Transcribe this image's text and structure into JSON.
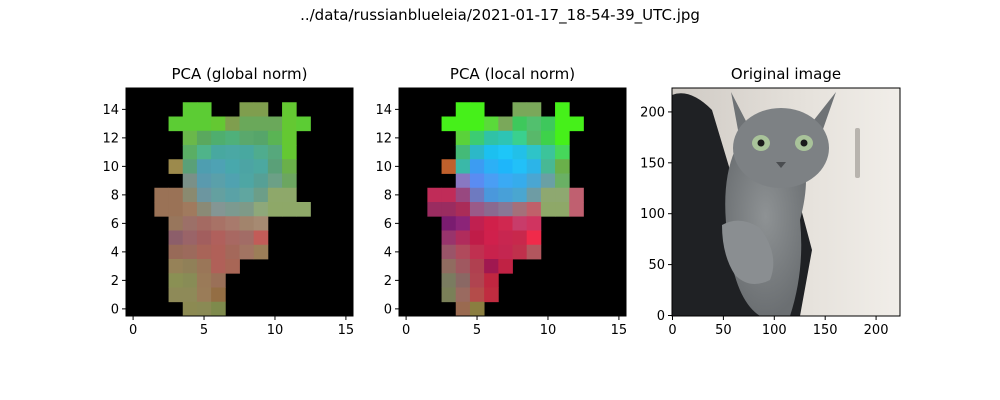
{
  "suptitle": "../data/russianblueleia/2021-01-17_18-54-39_UTC.jpg",
  "colors": {
    "background": "#000000",
    "frame": "#000000"
  },
  "chart_data": [
    {
      "type": "heatmap",
      "title": "PCA (global norm)",
      "xlim": [
        -0.5,
        15.5
      ],
      "ylim": [
        15.5,
        -0.5
      ],
      "x_ticks": [
        0,
        5,
        10,
        15
      ],
      "y_ticks": [
        0,
        2,
        4,
        6,
        8,
        10,
        12,
        14
      ],
      "grid_size": [
        16,
        16
      ],
      "background": "#000000",
      "cells": [
        [
          "#000000",
          "#000000",
          "#000000",
          "#000000",
          "#000000",
          "#000000",
          "#000000",
          "#000000",
          "#000000",
          "#000000",
          "#000000",
          "#000000",
          "#000000",
          "#000000",
          "#000000",
          "#000000"
        ],
        [
          "#000000",
          "#000000",
          "#000000",
          "#000000",
          "#5ccc34",
          "#5ccc34",
          "#000000",
          "#000000",
          "#7f9e4e",
          "#7f9e4e",
          "#000000",
          "#64c832",
          "#000000",
          "#000000",
          "#000000",
          "#000000"
        ],
        [
          "#000000",
          "#000000",
          "#000000",
          "#5ccc34",
          "#5ccc34",
          "#5ccc34",
          "#64c832",
          "#7f9e4e",
          "#6aa85a",
          "#6aa85a",
          "#6aa85a",
          "#64c832",
          "#5ccc34",
          "#000000",
          "#000000",
          "#000000"
        ],
        [
          "#000000",
          "#000000",
          "#000000",
          "#000000",
          "#6ab84a",
          "#5aa85e",
          "#4fae6e",
          "#4fb07a",
          "#5aa86c",
          "#56a56a",
          "#5ab454",
          "#64c832",
          "#000000",
          "#000000",
          "#000000",
          "#000000"
        ],
        [
          "#000000",
          "#000000",
          "#000000",
          "#000000",
          "#5aae64",
          "#4fb48a",
          "#48a8a0",
          "#4aa8a4",
          "#48a8a0",
          "#4fac8e",
          "#56a87c",
          "#64c832",
          "#000000",
          "#000000",
          "#000000",
          "#000000"
        ],
        [
          "#000000",
          "#000000",
          "#000000",
          "#9c8a4c",
          "#5aa078",
          "#4e9eb0",
          "#4ea2b4",
          "#48a8ac",
          "#4ca4a4",
          "#4ca8a0",
          "#5aa078",
          "#6ab04a",
          "#000000",
          "#000000",
          "#000000",
          "#000000"
        ],
        [
          "#000000",
          "#000000",
          "#000000",
          "#000000",
          "#7a9088",
          "#5a9aae",
          "#5aa0aa",
          "#50a2b0",
          "#4ea6a4",
          "#56a096",
          "#6ca086",
          "#6ca660",
          "#000000",
          "#000000",
          "#000000",
          "#000000"
        ],
        [
          "#000000",
          "#000000",
          "#9a7256",
          "#9a7256",
          "#8a8a70",
          "#6c96a0",
          "#64a0a0",
          "#5aa2a6",
          "#60a6a0",
          "#6c9e88",
          "#8ea86a",
          "#8ea86a",
          "#000000",
          "#000000",
          "#000000",
          "#000000"
        ],
        [
          "#000000",
          "#000000",
          "#9a7256",
          "#9a7256",
          "#a07a5e",
          "#8a8a76",
          "#849694",
          "#7c9a90",
          "#7e9a88",
          "#8ea87a",
          "#8ea868",
          "#8ea868",
          "#8ea868",
          "#000000",
          "#000000",
          "#000000"
        ],
        [
          "#000000",
          "#000000",
          "#000000",
          "#98765c",
          "#9c7068",
          "#a46a62",
          "#a87266",
          "#a87a6c",
          "#a2846c",
          "#a68a72",
          "#000000",
          "#000000",
          "#000000",
          "#000000",
          "#000000",
          "#000000"
        ],
        [
          "#000000",
          "#000000",
          "#000000",
          "#8c5e6a",
          "#9a6468",
          "#a25e5e",
          "#b0605c",
          "#a86862",
          "#a26c66",
          "#c25c58",
          "#000000",
          "#000000",
          "#000000",
          "#000000",
          "#000000",
          "#000000"
        ],
        [
          "#000000",
          "#000000",
          "#000000",
          "#986a58",
          "#9c6a5c",
          "#a86458",
          "#b06058",
          "#a4685a",
          "#a27462",
          "#9c7e58",
          "#000000",
          "#000000",
          "#000000",
          "#000000",
          "#000000",
          "#000000"
        ],
        [
          "#000000",
          "#000000",
          "#000000",
          "#968258",
          "#908058",
          "#9a7658",
          "#b06058",
          "#a86656",
          "#000000",
          "#000000",
          "#000000",
          "#000000",
          "#000000",
          "#000000",
          "#000000",
          "#000000"
        ],
        [
          "#000000",
          "#000000",
          "#000000",
          "#8a9054",
          "#888c56",
          "#9a7a58",
          "#9a7058",
          "#000000",
          "#000000",
          "#000000",
          "#000000",
          "#000000",
          "#000000",
          "#000000",
          "#000000",
          "#000000"
        ],
        [
          "#000000",
          "#000000",
          "#000000",
          "#8e8a58",
          "#8e8a58",
          "#9a7c58",
          "#946e44",
          "#000000",
          "#000000",
          "#000000",
          "#000000",
          "#000000",
          "#000000",
          "#000000",
          "#000000",
          "#000000"
        ],
        [
          "#000000",
          "#000000",
          "#000000",
          "#000000",
          "#8c8a52",
          "#8a8a54",
          "#7e8a4c",
          "#000000",
          "#000000",
          "#000000",
          "#000000",
          "#000000",
          "#000000",
          "#000000",
          "#000000",
          "#000000"
        ]
      ]
    },
    {
      "type": "heatmap",
      "title": "PCA (local norm)",
      "xlim": [
        -0.5,
        15.5
      ],
      "ylim": [
        15.5,
        -0.5
      ],
      "x_ticks": [
        0,
        5,
        10,
        15
      ],
      "y_ticks": [
        0,
        2,
        4,
        6,
        8,
        10,
        12,
        14
      ],
      "grid_size": [
        16,
        16
      ],
      "background": "#000000",
      "cells": [
        [
          "#000000",
          "#000000",
          "#000000",
          "#000000",
          "#000000",
          "#000000",
          "#000000",
          "#000000",
          "#000000",
          "#000000",
          "#000000",
          "#000000",
          "#000000",
          "#000000",
          "#000000",
          "#000000"
        ],
        [
          "#000000",
          "#000000",
          "#000000",
          "#000000",
          "#46f01a",
          "#46f01a",
          "#000000",
          "#000000",
          "#7aa85a",
          "#7aa85a",
          "#000000",
          "#46f01a",
          "#000000",
          "#000000",
          "#000000",
          "#000000"
        ],
        [
          "#000000",
          "#000000",
          "#000000",
          "#46f01a",
          "#46f01a",
          "#46f01a",
          "#5ada3a",
          "#7aa85a",
          "#3ec85c",
          "#52c06e",
          "#3ec85c",
          "#46f01a",
          "#46f01a",
          "#000000",
          "#000000",
          "#000000"
        ],
        [
          "#000000",
          "#000000",
          "#000000",
          "#000000",
          "#5ad23a",
          "#3ccc72",
          "#30c2a6",
          "#2ec4b4",
          "#3ad08e",
          "#58b86a",
          "#3ed24a",
          "#46f01a",
          "#000000",
          "#000000",
          "#000000",
          "#000000"
        ],
        [
          "#000000",
          "#000000",
          "#000000",
          "#000000",
          "#44ba78",
          "#2cb8c8",
          "#1cc0f0",
          "#1ec6f8",
          "#22c0e8",
          "#2ec4c8",
          "#3cc49a",
          "#46d85a",
          "#000000",
          "#000000",
          "#000000",
          "#000000"
        ],
        [
          "#000000",
          "#000000",
          "#000000",
          "#c0602c",
          "#3ab8a8",
          "#3c9cf2",
          "#2cb0f6",
          "#1eb6fa",
          "#22c0f8",
          "#2cb4e8",
          "#48b894",
          "#6ab04a",
          "#000000",
          "#000000",
          "#000000",
          "#000000"
        ],
        [
          "#000000",
          "#000000",
          "#000000",
          "#000000",
          "#8878c2",
          "#5a8cf2",
          "#4a9ef4",
          "#3aaaf4",
          "#36acec",
          "#4aa6d2",
          "#6aa0a4",
          "#6ab064",
          "#000000",
          "#000000",
          "#000000",
          "#000000"
        ],
        [
          "#000000",
          "#000000",
          "#c02c58",
          "#c02c58",
          "#984880",
          "#6e7ac0",
          "#4a98dc",
          "#48a0d8",
          "#4aa6d0",
          "#6e9ca4",
          "#8ea870",
          "#8ea870",
          "#c06070",
          "#000000",
          "#000000",
          "#000000"
        ],
        [
          "#000000",
          "#000000",
          "#9a2c60",
          "#9a2c60",
          "#aa2c58",
          "#9a5a88",
          "#8a6a90",
          "#887896",
          "#a4707a",
          "#c0606a",
          "#8ea868",
          "#8ea868",
          "#c06070",
          "#000000",
          "#000000",
          "#000000"
        ],
        [
          "#000000",
          "#000000",
          "#000000",
          "#7a1c70",
          "#8c2478",
          "#c02050",
          "#d0204a",
          "#d02850",
          "#c83c6a",
          "#d03460",
          "#000000",
          "#000000",
          "#000000",
          "#000000",
          "#000000",
          "#000000"
        ],
        [
          "#000000",
          "#000000",
          "#000000",
          "#98346c",
          "#b02c5c",
          "#c01c48",
          "#d0204c",
          "#c82650",
          "#c8284c",
          "#f02a4a",
          "#000000",
          "#000000",
          "#000000",
          "#000000",
          "#000000",
          "#000000"
        ],
        [
          "#000000",
          "#000000",
          "#000000",
          "#9a5468",
          "#b04a5c",
          "#c03050",
          "#c8224c",
          "#c42650",
          "#c0304c",
          "#b2565e",
          "#000000",
          "#000000",
          "#000000",
          "#000000",
          "#000000",
          "#000000"
        ],
        [
          "#000000",
          "#000000",
          "#000000",
          "#906c60",
          "#a05860",
          "#b04050",
          "#a01850",
          "#c02244",
          "#000000",
          "#000000",
          "#000000",
          "#000000",
          "#000000",
          "#000000",
          "#000000",
          "#000000"
        ],
        [
          "#000000",
          "#000000",
          "#000000",
          "#7a7c60",
          "#8a6864",
          "#b04450",
          "#c02640",
          "#000000",
          "#000000",
          "#000000",
          "#000000",
          "#000000",
          "#000000",
          "#000000",
          "#000000",
          "#000000"
        ],
        [
          "#000000",
          "#000000",
          "#000000",
          "#7a8058",
          "#9a6a60",
          "#b44c4a",
          "#c02c40",
          "#000000",
          "#000000",
          "#000000",
          "#000000",
          "#000000",
          "#000000",
          "#000000",
          "#000000",
          "#000000"
        ],
        [
          "#000000",
          "#000000",
          "#000000",
          "#000000",
          "#9a6a50",
          "#8a7e40",
          "#000000",
          "#000000",
          "#000000",
          "#000000",
          "#000000",
          "#000000",
          "#000000",
          "#000000",
          "#000000",
          "#000000"
        ]
      ]
    },
    {
      "type": "image",
      "title": "Original image",
      "xlim": [
        -0.5,
        223.5
      ],
      "ylim": [
        223.5,
        -0.5
      ],
      "x_ticks": [
        0,
        50,
        100,
        150,
        200
      ],
      "y_ticks": [
        0,
        50,
        100,
        150,
        200
      ],
      "image_description": "gray russian blue cat with green eyes held against a dark jacket"
    }
  ]
}
